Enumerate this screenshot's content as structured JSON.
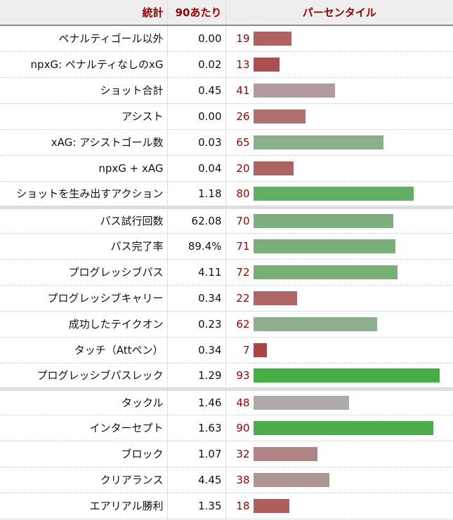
{
  "header": {
    "stat": "統計",
    "per90": "90あたり",
    "percentile": "パーセンタイル"
  },
  "rows": [
    {
      "stat": "ペナルティゴール以外",
      "per90": "0.00",
      "pct": 19,
      "color": "#ae6262"
    },
    {
      "stat": "npxG: ペナルティなしのxG",
      "per90": "0.02",
      "pct": 13,
      "color": "#ab4f4f"
    },
    {
      "stat": "ショット合計",
      "per90": "0.45",
      "pct": 41,
      "color": "#b09c9c"
    },
    {
      "stat": "アシスト",
      "per90": "0.00",
      "pct": 26,
      "color": "#ae7070"
    },
    {
      "stat": "xAG: アシストゴール数",
      "per90": "0.03",
      "pct": 65,
      "color": "#8ab08a"
    },
    {
      "stat": "npxG + xAG",
      "per90": "0.04",
      "pct": 20,
      "color": "#ae6363"
    },
    {
      "stat": "ショットを生み出すアクション",
      "per90": "1.18",
      "pct": 80,
      "color": "#62ae62"
    },
    {
      "stat": "パス試行回数",
      "per90": "62.08",
      "pct": 70,
      "color": "#7daf7d",
      "sep": true
    },
    {
      "stat": "パス完了率",
      "per90": "89.4%",
      "pct": 71,
      "color": "#7aaf7a"
    },
    {
      "stat": "プログレッシブパス",
      "per90": "4.11",
      "pct": 72,
      "color": "#77af77"
    },
    {
      "stat": "プログレッシブキャリー",
      "per90": "0.34",
      "pct": 22,
      "color": "#af6666"
    },
    {
      "stat": "成功したテイクオン",
      "per90": "0.23",
      "pct": 62,
      "color": "#8daf8d"
    },
    {
      "stat": "タッチ（Attペン）",
      "per90": "0.34",
      "pct": 7,
      "color": "#ab4545"
    },
    {
      "stat": "プログレッシブパスレック",
      "per90": "1.29",
      "pct": 93,
      "color": "#44ae44"
    },
    {
      "stat": "タックル",
      "per90": "1.46",
      "pct": 48,
      "color": "#aeaaa9",
      "sep": true
    },
    {
      "stat": "インターセプト",
      "per90": "1.63",
      "pct": 90,
      "color": "#4cad4c"
    },
    {
      "stat": "ブロック",
      "per90": "1.07",
      "pct": 32,
      "color": "#b08484"
    },
    {
      "stat": "クリアランス",
      "per90": "4.45",
      "pct": 38,
      "color": "#af9494"
    },
    {
      "stat": "エアリアル勝利",
      "per90": "1.35",
      "pct": 18,
      "color": "#ae5e5e"
    }
  ]
}
